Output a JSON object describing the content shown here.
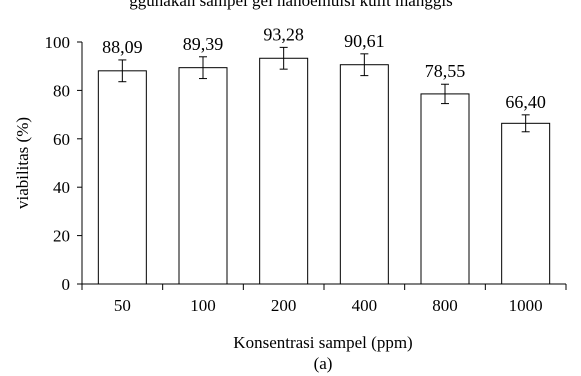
{
  "top_clipped_text": "ggunakan sampel gel nanoemulsi kulit manggis",
  "chart_data": {
    "type": "bar",
    "categories": [
      "50",
      "100",
      "200",
      "400",
      "800",
      "1000"
    ],
    "values": [
      88.09,
      89.39,
      93.28,
      90.61,
      78.55,
      66.4
    ],
    "errors": [
      4.5,
      4.5,
      4.5,
      4.5,
      4.0,
      3.5
    ],
    "data_labels": [
      "88,09",
      "89,39",
      "93,28",
      "90,61",
      "78,55",
      "66,40"
    ],
    "xlabel": "Konsentrasi sampel (ppm)",
    "ylabel": "viabilitas (%)",
    "ylim": [
      0,
      100
    ],
    "yticks": [
      "0",
      "20",
      "40",
      "60",
      "80",
      "100"
    ],
    "grid": false,
    "bar_fill": "#ffffff",
    "bar_stroke": "#000000"
  },
  "caption": "(a)"
}
